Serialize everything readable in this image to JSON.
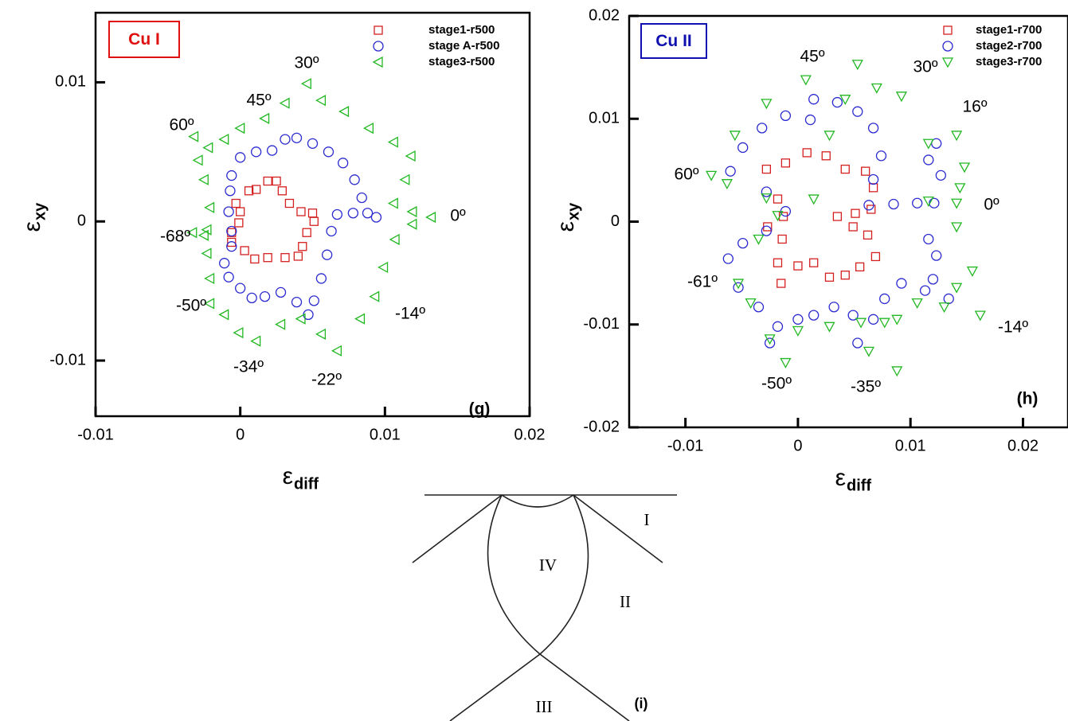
{
  "chart_data": [
    {
      "type": "scatter",
      "xlim": [
        -0.01,
        0.02
      ],
      "ylim": [
        -0.014,
        0.015
      ],
      "xticks": [
        -0.01,
        0,
        0.01,
        0.02
      ],
      "yticks": [
        -0.01,
        0,
        0.01
      ],
      "xlabel": {
        "text": "ε",
        "sub": "diff"
      },
      "ylabel": {
        "text": "ε",
        "sub": "xy"
      },
      "box_label": {
        "text": "Cu I",
        "color": "#e01010"
      },
      "panel_label": "(g)",
      "annotations": [
        "30º",
        "45º",
        "60º",
        "0º",
        "-68º",
        "-50º",
        "-34º",
        "-22º",
        "-14º"
      ],
      "series": [
        {
          "name": "stage1-r500",
          "color": "#d42020",
          "marker": "square",
          "x": [
            -0.0003,
            0.0006,
            0.0011,
            0.0019,
            0.0025,
            0.0029,
            0.0034,
            0.0042,
            0.005,
            0.0051,
            0.0046,
            0.0043,
            0.004,
            0.0031,
            0.0019,
            0.001,
            0.0003,
            -0.0006,
            -0.0006,
            -0.0001,
            0
          ],
          "y": [
            0.0013,
            0.0022,
            0.0023,
            0.0029,
            0.0029,
            0.0022,
            0.0013,
            0.0007,
            0.0006,
            0,
            -0.0008,
            -0.0018,
            -0.0025,
            -0.0026,
            -0.0026,
            -0.0027,
            -0.0021,
            -0.0015,
            -0.0008,
            -0.0001,
            0.0007
          ]
        },
        {
          "name": "stage A-r500",
          "color": "#2a2ad0",
          "marker": "circle",
          "x": [
            -0.0006,
            0,
            0.0011,
            0.0022,
            0.0031,
            0.0039,
            0.005,
            0.0061,
            0.0071,
            0.0079,
            0.0084,
            0.0088,
            0.0094,
            0.0078,
            0.0067,
            0.0063,
            0.006,
            0.0056,
            0.0051,
            0.0047,
            0.0039,
            0.0028,
            0.0017,
            0.0008,
            0,
            -0.0008,
            -0.0011,
            -0.0006,
            -0.0006,
            -0.0008,
            -0.0007
          ],
          "y": [
            0.0033,
            0.0046,
            0.005,
            0.0051,
            0.0059,
            0.006,
            0.0056,
            0.005,
            0.0042,
            0.003,
            0.0017,
            0.0006,
            0.0003,
            0.0006,
            0.0005,
            -0.0007,
            -0.0024,
            -0.0041,
            -0.0057,
            -0.0067,
            -0.0058,
            -0.0051,
            -0.0054,
            -0.0055,
            -0.0048,
            -0.004,
            -0.003,
            -0.0018,
            -0.0007,
            0.0007,
            0.0022
          ]
        },
        {
          "name": "stage3-r500",
          "color": "#22b822",
          "marker": "triangle-left",
          "x": [
            -0.0032,
            -0.0022,
            -0.0011,
            0,
            0.0017,
            0.0031,
            0.0046,
            0.0056,
            0.0072,
            0.0089,
            0.0106,
            0.0118,
            0.0114,
            0.0106,
            0.0119,
            0.0132,
            0.0119,
            0.0107,
            0.0099,
            0.0093,
            0.0083,
            0.0067,
            0.0056,
            0.0042,
            0.0028,
            0.0011,
            -0.0001,
            -0.0011,
            -0.0021,
            -0.0021,
            -0.0023,
            -0.0025,
            -0.0033,
            -0.0023,
            -0.0021,
            -0.0025,
            -0.0029
          ],
          "y": [
            0.0061,
            0.0053,
            0.0059,
            0.0067,
            0.0074,
            0.0085,
            0.0099,
            0.0087,
            0.0079,
            0.0067,
            0.0057,
            0.0047,
            0.003,
            0.0013,
            0.0007,
            0.0003,
            -0.0002,
            -0.0013,
            -0.0033,
            -0.0054,
            -0.007,
            -0.0093,
            -0.0081,
            -0.007,
            -0.0074,
            -0.0086,
            -0.008,
            -0.0067,
            -0.0059,
            -0.0041,
            -0.0023,
            -0.001,
            -0.0008,
            -0.0006,
            0.001,
            0.003,
            0.0044
          ]
        }
      ]
    },
    {
      "type": "scatter",
      "xlim": [
        -0.015,
        0.024
      ],
      "ylim": [
        -0.02,
        0.02
      ],
      "xticks": [
        -0.01,
        0,
        0.01,
        0.02
      ],
      "yticks": [
        -0.02,
        -0.01,
        0,
        0.01,
        0.02
      ],
      "xlabel": {
        "text": "ε",
        "sub": "diff"
      },
      "ylabel": {
        "text": "ε",
        "sub": "xy"
      },
      "box_label": {
        "text": "Cu II",
        "color": "#1010b0"
      },
      "panel_label": "(h)",
      "annotations": [
        "45º",
        "30º",
        "16º",
        "60º",
        "0º",
        "-61º",
        "-14º",
        "-50º",
        "-35º"
      ],
      "series": [
        {
          "name": "stage1-r700",
          "color": "#d42020",
          "marker": "square",
          "x": [
            -0.0018,
            -0.0028,
            -0.0011,
            0.0008,
            0.0025,
            0.0042,
            0.006,
            0.0067,
            0.0065,
            0.0051,
            0.0035,
            0.0049,
            0.0062,
            0.0069,
            0.0055,
            0.0042,
            0.0028,
            0.0014,
            0,
            -0.0015,
            -0.0018,
            -0.0014,
            -0.0027,
            -0.0013
          ],
          "y": [
            0.0022,
            0.0051,
            0.0057,
            0.0067,
            0.0064,
            0.0051,
            0.0049,
            0.0033,
            0.0012,
            0.0008,
            0.0005,
            -0.0005,
            -0.0013,
            -0.0034,
            -0.0044,
            -0.0052,
            -0.0054,
            -0.004,
            -0.0043,
            -0.006,
            -0.004,
            -0.0017,
            -0.0005,
            0.0005
          ]
        },
        {
          "name": "stage2-r700",
          "color": "#2a2ad0",
          "marker": "circle",
          "x": [
            -0.0028,
            -0.006,
            -0.0049,
            -0.0032,
            -0.0011,
            0.0011,
            0.0014,
            0.0035,
            0.0053,
            0.0067,
            0.0074,
            0.0067,
            0.0063,
            0.0085,
            0.0106,
            0.0116,
            0.0123,
            0.0127,
            0.0121,
            0.0116,
            0.0123,
            0.012,
            0.0134,
            0.0113,
            0.0092,
            0.0077,
            0.0067,
            0.0053,
            0.0049,
            0.0032,
            0.0014,
            0,
            -0.0018,
            -0.0025,
            -0.0035,
            -0.0053,
            -0.0062,
            -0.0049,
            -0.0028,
            -0.0011
          ],
          "y": [
            0.0029,
            0.0049,
            0.0072,
            0.0091,
            0.0103,
            0.0099,
            0.0119,
            0.0116,
            0.0107,
            0.0091,
            0.0064,
            0.0041,
            0.0016,
            0.0017,
            0.0018,
            0.006,
            0.0076,
            0.0045,
            0.0018,
            -0.0017,
            -0.0033,
            -0.0056,
            -0.0075,
            -0.0067,
            -0.006,
            -0.0075,
            -0.0095,
            -0.0118,
            -0.0091,
            -0.0083,
            -0.0091,
            -0.0095,
            -0.0102,
            -0.0118,
            -0.0083,
            -0.0064,
            -0.0036,
            -0.0021,
            -0.0009,
            0.001
          ]
        },
        {
          "name": "stage3-r700",
          "color": "#22b822",
          "marker": "triangle-down",
          "x": [
            -0.0028,
            -0.0063,
            -0.0077,
            -0.0056,
            -0.0028,
            0.0007,
            0.0028,
            0.0042,
            0.0053,
            0.007,
            0.0092,
            0.0116,
            0.0141,
            0.0148,
            0.0144,
            0.0116,
            0.0141,
            0.0141,
            0.0155,
            0.0141,
            0.0162,
            0.013,
            0.0106,
            0.0088,
            0.0077,
            0.0088,
            0.0063,
            0.0056,
            0.0028,
            0,
            -0.0011,
            -0.0025,
            -0.0042,
            -0.0053,
            -0.0035,
            0.0014,
            -0.0018
          ],
          "y": [
            0.0023,
            0.0037,
            0.0045,
            0.0084,
            0.0115,
            0.0138,
            0.0084,
            0.0119,
            0.0153,
            0.013,
            0.0122,
            0.0076,
            0.0084,
            0.0053,
            0.0033,
            0.002,
            0.0018,
            -0.0005,
            -0.0048,
            -0.0064,
            -0.0091,
            -0.0083,
            -0.0079,
            -0.0095,
            -0.0098,
            -0.0145,
            -0.0126,
            -0.0098,
            -0.0102,
            -0.0106,
            -0.0137,
            -0.0114,
            -0.0079,
            -0.006,
            -0.0017,
            0.0022,
            0.0006
          ]
        }
      ]
    }
  ],
  "diagram": {
    "labels": [
      "I",
      "II",
      "III",
      "IV"
    ],
    "panel_label": "(i)"
  }
}
